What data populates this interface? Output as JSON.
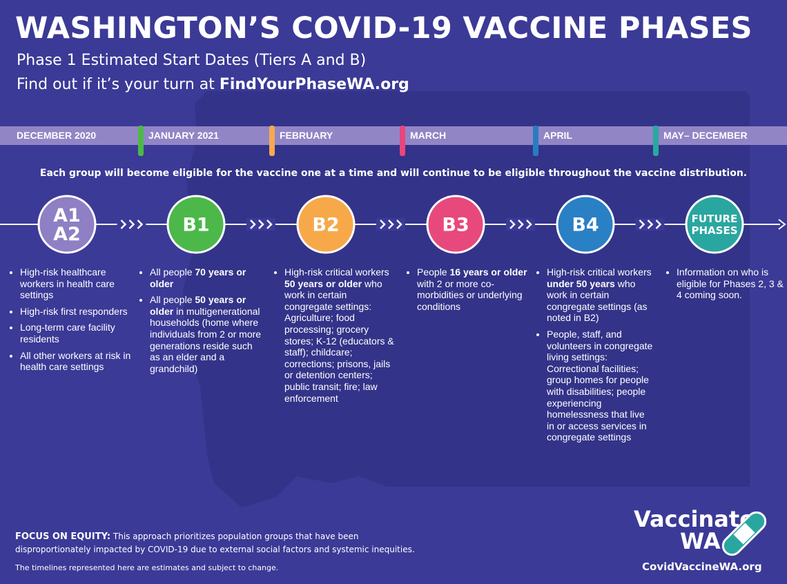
{
  "header": {
    "title": "WASHINGTON’S COVID-19 VACCINE PHASES",
    "subtitle": "Phase 1 Estimated Start Dates (Tiers A and B)",
    "cta_text": "Find out if it’s your turn at ",
    "cta_link": "FindYourPhaseWA.org"
  },
  "timeline": [
    {
      "label": "DECEMBER 2020"
    },
    {
      "label": "JANUARY 2021",
      "tick_color": "#4db848"
    },
    {
      "label": "FEBRUARY",
      "tick_color": "#f9a94f"
    },
    {
      "label": "MARCH",
      "tick_color": "#e8467c"
    },
    {
      "label": "APRIL",
      "tick_color": "#2a7cc0"
    },
    {
      "label": "MAY– DECEMBER",
      "tick_color": "#2aa8a0"
    }
  ],
  "note": "Each group will become eligible for the vaccine one at a time and will continue to be eligible throughout the vaccine distribution.",
  "phases": [
    {
      "badge": [
        "A1",
        "A2"
      ],
      "color": "#8f7fc4",
      "bullets": [
        [
          {
            "t": "High-risk healthcare workers in health care settings"
          }
        ],
        [
          {
            "t": "High-risk first responders"
          }
        ],
        [
          {
            "t": "Long-term care facility residents"
          }
        ],
        [
          {
            "t": "All other workers at risk in health care settings"
          }
        ]
      ]
    },
    {
      "badge": [
        "B1"
      ],
      "color": "#4cb84a",
      "bullets": [
        [
          {
            "t": "All people "
          },
          {
            "t": "70 years or older",
            "b": true
          }
        ],
        [
          {
            "t": "All people "
          },
          {
            "t": "50 years or older",
            "b": true
          },
          {
            "t": " in multigenerational households (home where individuals from 2 or more generations reside such as an elder and a grandchild)"
          }
        ]
      ]
    },
    {
      "badge": [
        "B2"
      ],
      "color": "#f7a94a",
      "bullets": [
        [
          {
            "t": "High-risk critical workers "
          },
          {
            "t": "50 years or older",
            "b": true
          },
          {
            "t": " who work in certain congregate settings: Agriculture; food processing; grocery stores; K-12 (educators & staff); childcare; corrections; prisons, jails or detention centers; public transit; fire; law enforcement"
          }
        ]
      ]
    },
    {
      "badge": [
        "B3"
      ],
      "color": "#e8497c",
      "bullets": [
        [
          {
            "t": "People "
          },
          {
            "t": "16 years or older",
            "b": true
          },
          {
            "t": " with 2 or more co-morbidities or underlying conditions"
          }
        ]
      ]
    },
    {
      "badge": [
        "B4"
      ],
      "color": "#2a80c5",
      "bullets": [
        [
          {
            "t": "High-risk critical workers "
          },
          {
            "t": "under 50 years",
            "b": true
          },
          {
            "t": " who work in certain congregate settings (as noted in B2)"
          }
        ],
        [
          {
            "t": "People, staff, and volunteers in congregate living settings: Correctional facilities; group homes for people with disabilities; people experiencing homelessness that live in or access services in congregate settings"
          }
        ]
      ]
    },
    {
      "badge": [
        "FUTURE",
        "PHASES"
      ],
      "color": "#2aa6a0",
      "bullets": [
        [
          {
            "t": "Information on who is eligible for Phases 2, 3 & 4 coming soon."
          }
        ]
      ]
    }
  ],
  "footer": {
    "equity_label": "FOCUS ON EQUITY:",
    "equity_text": " This approach prioritizes population groups that have been disproportionately impacted by COVID-19 due to external social factors and systemic inequities.",
    "disclaimer": "The timelines represented here are estimates and subject to change.",
    "logo_top": "Vaccinate",
    "logo_bottom": "WA",
    "url": "CovidVaccineWA.org"
  }
}
